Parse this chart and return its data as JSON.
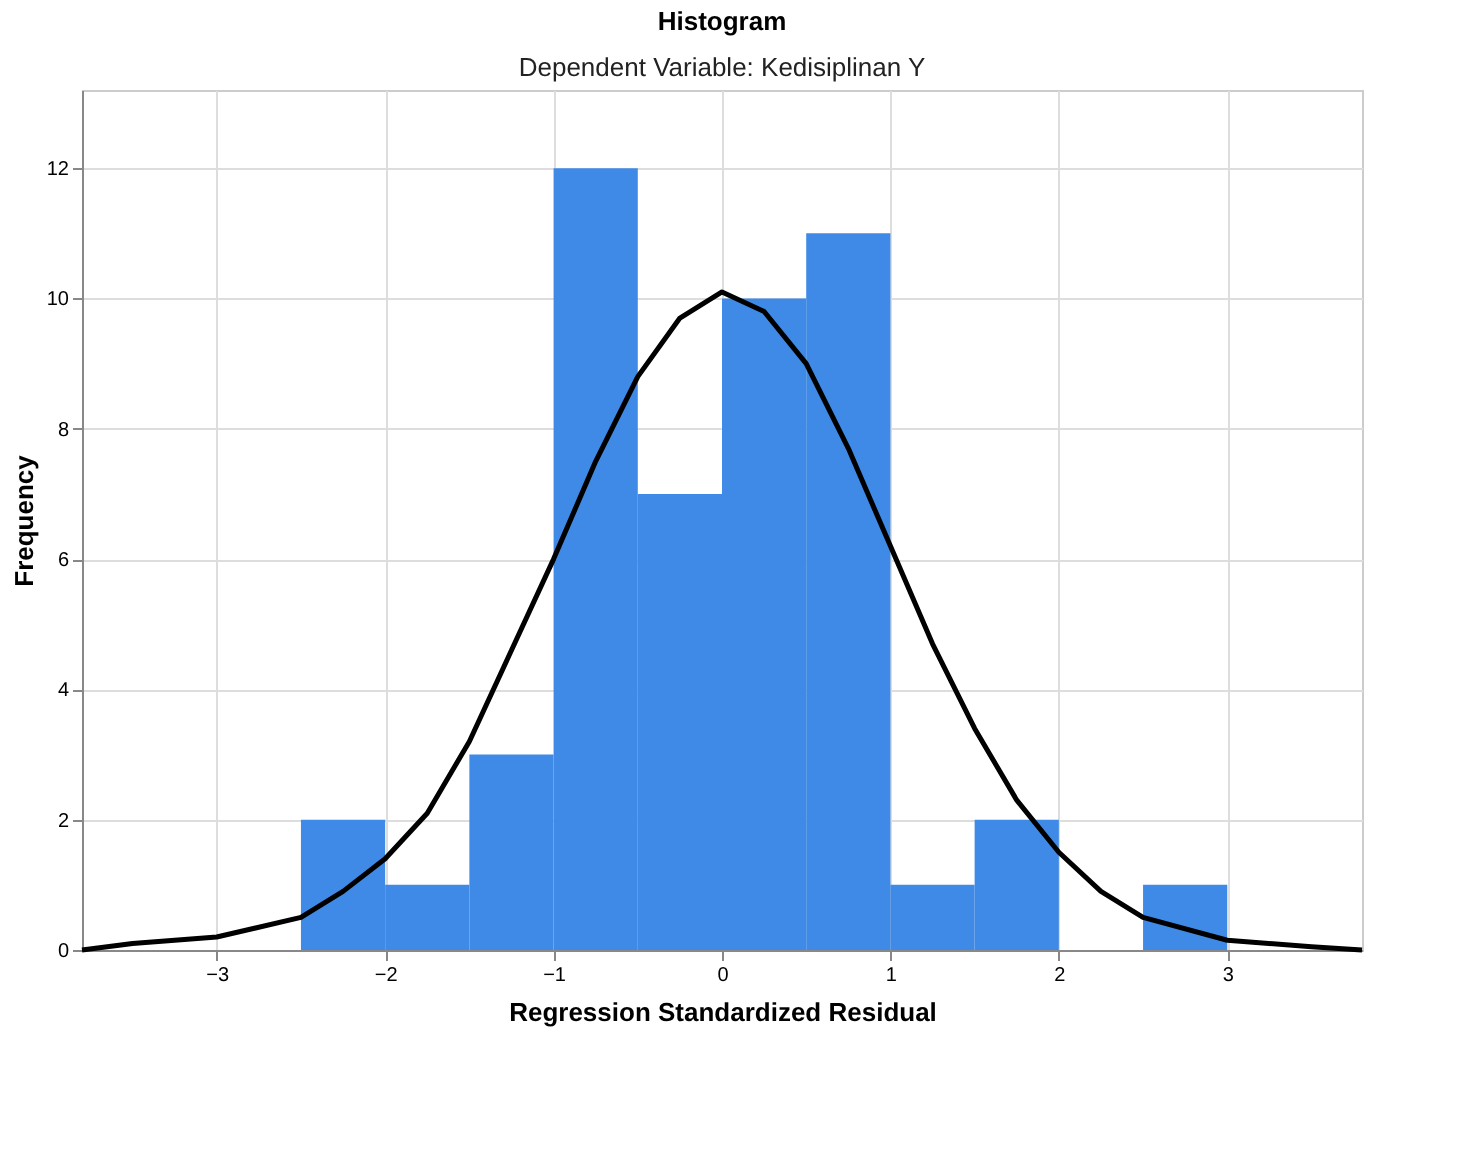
{
  "chart_data": {
    "type": "histogram",
    "title": "Histogram",
    "subtitle": "Dependent Variable: Kedisiplinan Y",
    "xlabel": "Regression Standardized Residual",
    "ylabel": "Frequency",
    "bins": [
      -2.5,
      -2,
      -1.5,
      -1,
      -0.5,
      0,
      0.5,
      1,
      1.5,
      2,
      2.5,
      3
    ],
    "values": [
      2,
      1,
      3,
      12,
      7,
      10,
      11,
      1,
      2,
      0,
      1
    ],
    "color": "#3f8ae6",
    "series": [
      {
        "type": "line",
        "color": "#000000",
        "x": [
          -3.8,
          -3.5,
          -3.0,
          -2.5,
          -2.25,
          -2.0,
          -1.75,
          -1.5,
          -1.25,
          -1.0,
          -0.75,
          -0.5,
          -0.25,
          0.0,
          0.25,
          0.5,
          0.75,
          1.0,
          1.25,
          1.5,
          1.75,
          2.0,
          2.25,
          2.5,
          3.0,
          3.5,
          3.8
        ],
        "values": [
          0.0,
          0.1,
          0.2,
          0.5,
          0.9,
          1.4,
          2.1,
          3.2,
          4.6,
          6.0,
          7.5,
          8.8,
          9.7,
          10.1,
          9.8,
          9.0,
          7.7,
          6.2,
          4.7,
          3.4,
          2.3,
          1.5,
          0.9,
          0.5,
          0.15,
          0.05,
          0.0
        ]
      }
    ],
    "xlim": [
      -3.8,
      3.8
    ],
    "xticks": [
      -3,
      -2,
      -1,
      0,
      1,
      2,
      3
    ],
    "ylim": [
      0,
      13.2
    ],
    "yticks": [
      0,
      2,
      4,
      6,
      8,
      10,
      12
    ],
    "grid": true,
    "marker": "none",
    "line_style": "solid"
  }
}
